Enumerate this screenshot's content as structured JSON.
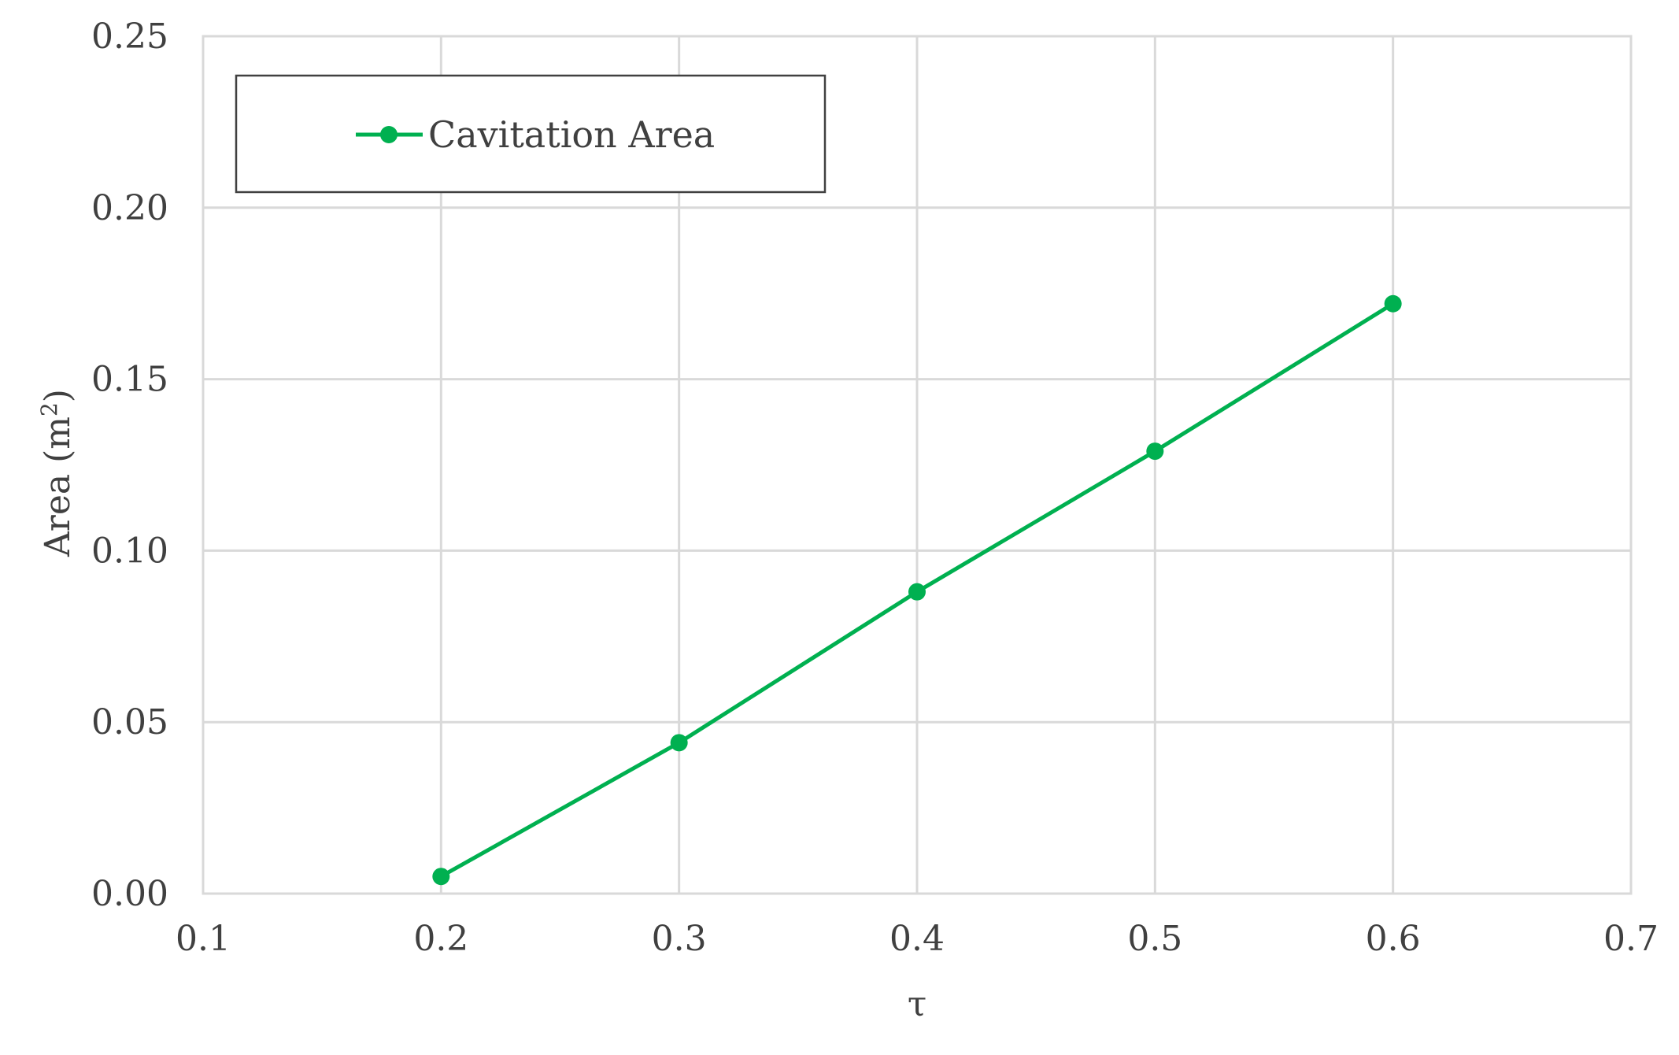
{
  "chart_data": {
    "type": "line",
    "x_label": "τ",
    "y_label": "Area (m",
    "y_label_superscript": "2",
    "y_label_close": ")",
    "xlim": [
      0.1,
      0.7
    ],
    "ylim": [
      0.0,
      0.25
    ],
    "x_ticks": [
      0.1,
      0.2,
      0.3,
      0.4,
      0.5,
      0.6,
      0.7
    ],
    "x_tick_labels": [
      "0.1",
      "0.2",
      "0.3",
      "0.4",
      "0.5",
      "0.6",
      "0.7"
    ],
    "y_ticks": [
      0.0,
      0.05,
      0.1,
      0.15,
      0.2,
      0.25
    ],
    "y_tick_labels": [
      "0.00",
      "0.05",
      "0.10",
      "0.15",
      "0.20",
      "0.25"
    ],
    "grid": true,
    "legend_position": "top-left",
    "series": [
      {
        "name": "Cavitation Area",
        "color": "#00b050",
        "marker": "circle",
        "x": [
          0.2,
          0.3,
          0.4,
          0.5,
          0.6
        ],
        "y": [
          0.005,
          0.044,
          0.088,
          0.129,
          0.172
        ]
      }
    ]
  }
}
